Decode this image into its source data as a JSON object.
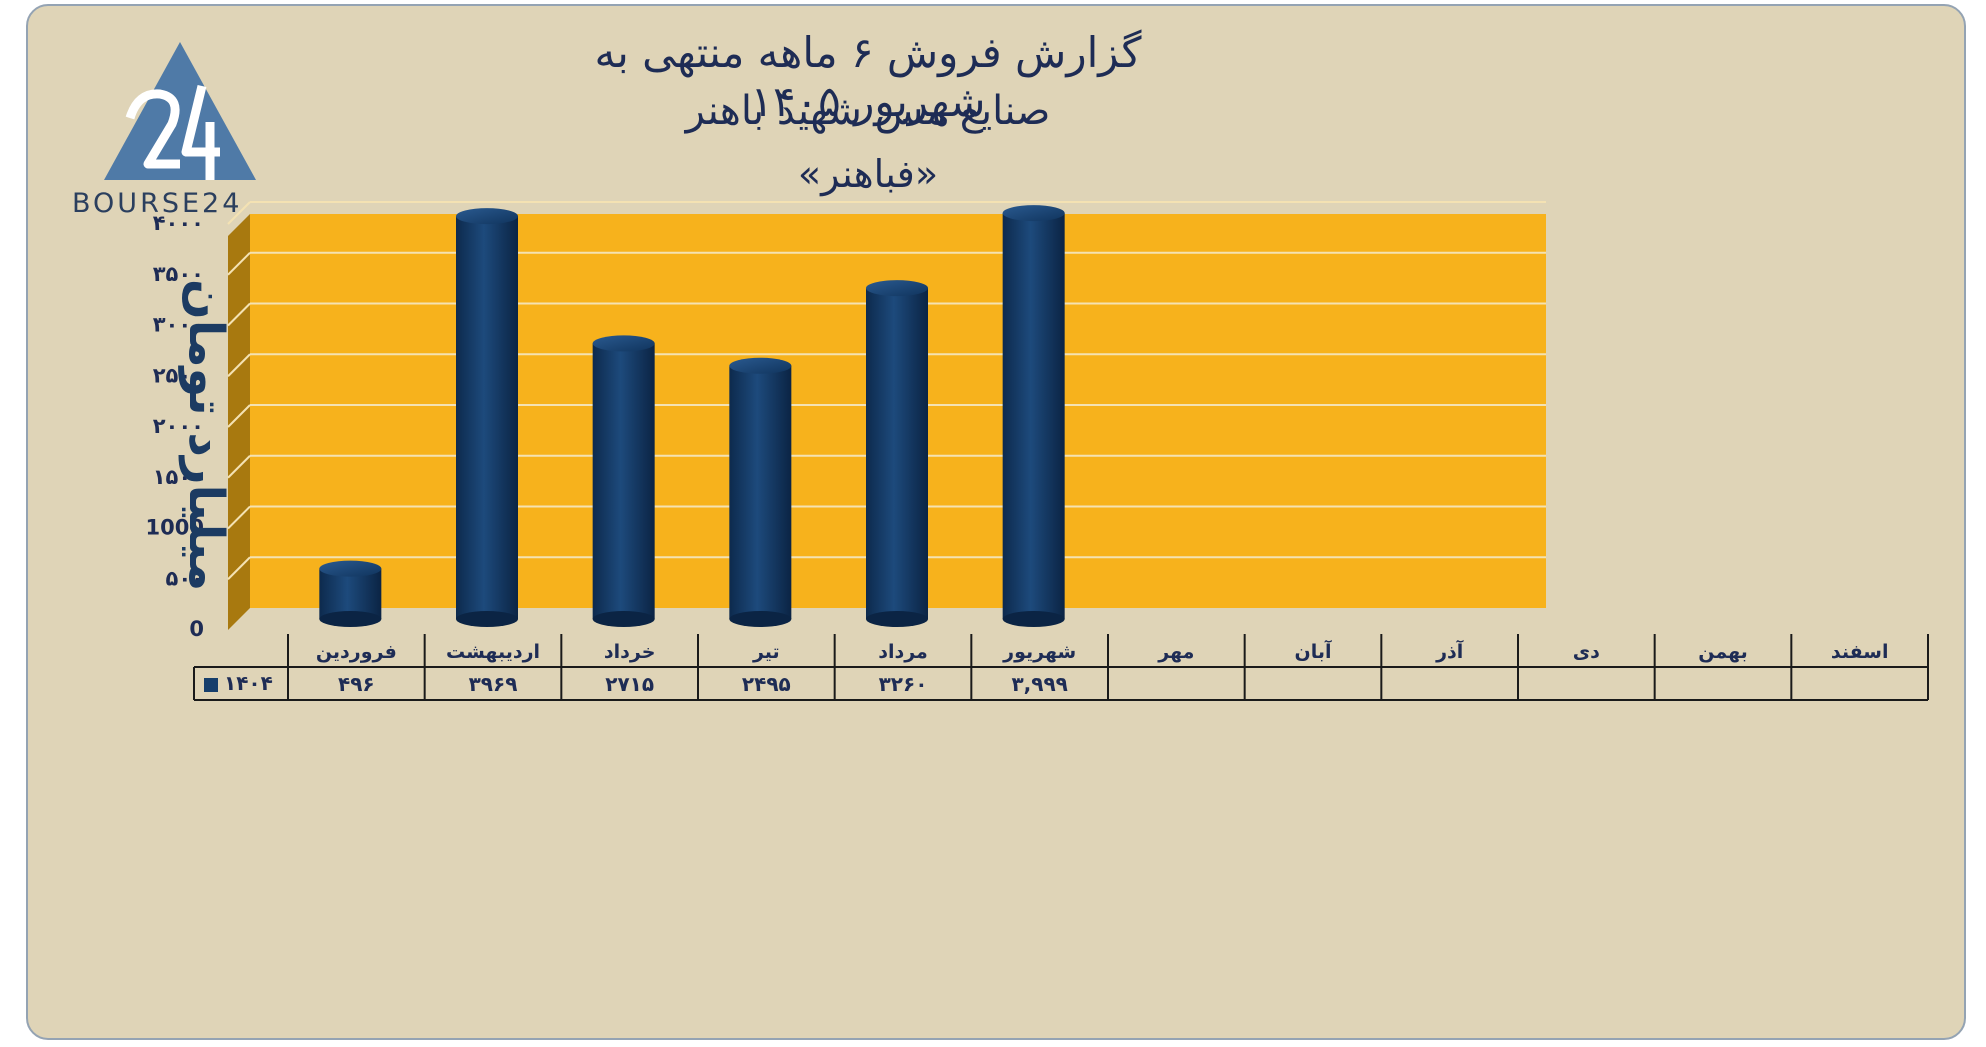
{
  "title": {
    "line1": "گزارش  فروش ۶ ماهه منتهی به شهریور ۱۴۰۵",
    "line2": "صنایع مس شهید باهنر",
    "line3": "«فباهنر»"
  },
  "logo": {
    "mark": "24",
    "text": "BOURSE24"
  },
  "colors": {
    "background": "#dfd4b7",
    "plot": "#f7b21c",
    "side_wall": "#a8790f",
    "bar": "#163e6b",
    "text": "#1e2c55"
  },
  "chart_data": {
    "type": "bar",
    "ylabel": "میلیارد تومان",
    "ylim": [
      0,
      4000
    ],
    "yticks": [
      0,
      500,
      1000,
      1500,
      2000,
      2500,
      3000,
      3500,
      4000
    ],
    "ytick_labels": [
      "0",
      "۵۰۰",
      "1000",
      "۱۵۰۰",
      "۲۰۰۰",
      "۲۵۰۰",
      "۳۰۰۰",
      "۳۵۰۰",
      "۴۰۰۰"
    ],
    "categories": [
      "فروردین",
      "اردیبهشت",
      "خرداد",
      "تیر",
      "مرداد",
      "شهریور",
      "مهر",
      "آبان",
      "آذر",
      "دی",
      "بهمن",
      "اسفند"
    ],
    "grid": true,
    "data_table": true,
    "series": [
      {
        "name": "۱۴۰۴",
        "values": [
          496,
          3969,
          2715,
          2495,
          3260,
          3999,
          null,
          null,
          null,
          null,
          null,
          null
        ],
        "labels": [
          "۴۹۶",
          "۳۹۶۹",
          "۲۷۱۵",
          "۲۴۹۵",
          "۳۲۶۰",
          "۳,۹۹۹",
          "",
          "",
          "",
          "",
          "",
          ""
        ]
      }
    ]
  }
}
